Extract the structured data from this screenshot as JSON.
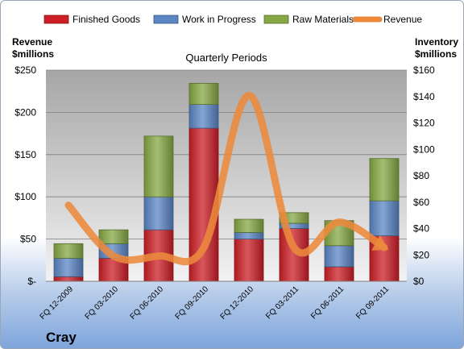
{
  "chart_data": {
    "type": "bar",
    "subtype": "stacked-bar-with-line",
    "title": "Quarterly Periods",
    "company": "Cray",
    "left_axis_label": [
      "Revenue",
      "$millions"
    ],
    "right_axis_label": [
      "Inventory",
      "$millions"
    ],
    "left_ticks": [
      "$-",
      "$50",
      "$100",
      "$150",
      "$200",
      "$250"
    ],
    "right_ticks": [
      "$0",
      "$20",
      "$40",
      "$60",
      "$80",
      "$100",
      "$120",
      "$140",
      "$160"
    ],
    "left_ylim": [
      0,
      250
    ],
    "right_ylim": [
      0,
      160
    ],
    "legend_position": "top",
    "categories": [
      "FQ 12-2009",
      "FQ 03-2010",
      "FQ 06-2010",
      "FQ 09-2010",
      "FQ 12-2010",
      "FQ 03-2011",
      "FQ 06-2011",
      "FQ 09-2011"
    ],
    "series": [
      {
        "name": "Finished Goods",
        "axis": "right",
        "color": "#cc1f26",
        "values": [
          3.5,
          17.5,
          39,
          116,
          32,
          40,
          11,
          34.5
        ]
      },
      {
        "name": "Work in Progress",
        "axis": "right",
        "color": "#5b86c4",
        "values": [
          14,
          11,
          25,
          18,
          5,
          4,
          16,
          26.5
        ]
      },
      {
        "name": "Raw Materials",
        "axis": "right",
        "color": "#86a844",
        "values": [
          11,
          10.5,
          46,
          16,
          10,
          8,
          19,
          32
        ]
      },
      {
        "name": "Revenue",
        "type": "line",
        "axis": "left",
        "color": "#ec8a3c",
        "values": [
          90,
          30,
          30,
          40,
          220,
          40,
          70,
          40
        ]
      }
    ],
    "grid": true
  }
}
